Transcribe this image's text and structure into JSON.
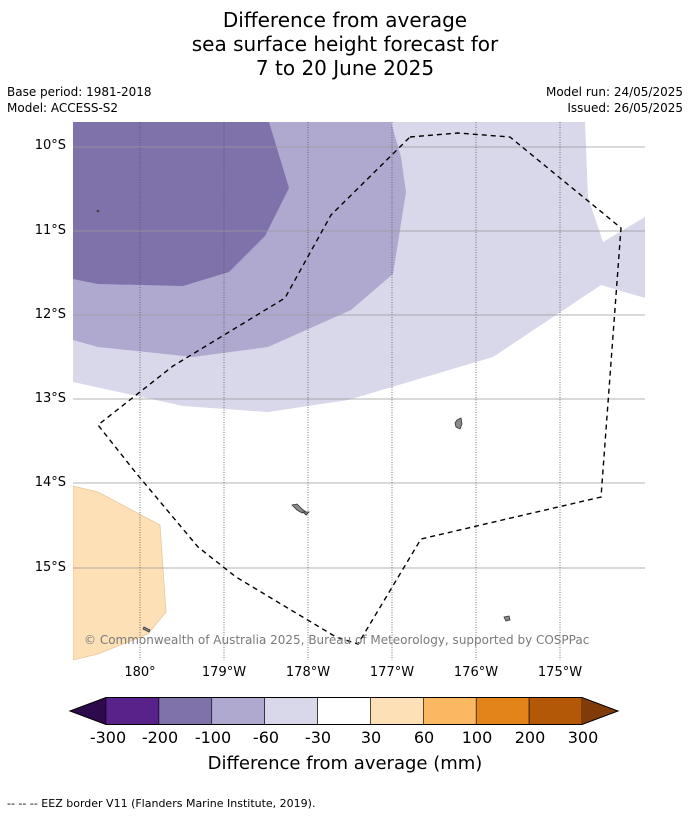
{
  "title": {
    "line1": "Difference from average",
    "line2": "sea surface height forecast for",
    "line3": "7 to 20 June 2025"
  },
  "meta": {
    "base_period": "Base period: 1981-2018",
    "model": "Model: ACCESS-S2",
    "model_run": "Model run: 24/05/2025",
    "issued": "Issued: 26/05/2025"
  },
  "map": {
    "lat_labels": [
      "10°S",
      "11°S",
      "12°S",
      "13°S",
      "14°S",
      "15°S"
    ],
    "lon_labels": [
      "180°",
      "179°W",
      "178°W",
      "177°W",
      "176°W",
      "175°W"
    ],
    "copyright": "© Commonwealth of Australia 2025, Bureau of Meteorology, supported by COSPPac",
    "colors": {
      "class_minus_200_minus_100": "#7f71aa",
      "class_minus_100_minus_60": "#afa9d0",
      "class_minus_60_minus_30": "#d8d8ea",
      "class_30_60": "#fde0b6"
    }
  },
  "colorbar": {
    "title": "Difference from average (mm)",
    "ticks": [
      "-300",
      "-200",
      "-100",
      "-60",
      "-30",
      "30",
      "60",
      "100",
      "200",
      "300"
    ],
    "colors": [
      "#2d0a4b",
      "#58228a",
      "#7f71aa",
      "#afa9d0",
      "#d8d8ea",
      "#ffffff",
      "#fde0b6",
      "#fbb862",
      "#e2841a",
      "#b35807",
      "#7f3b08"
    ]
  },
  "footer": {
    "legend_line": "--  --  -- EEZ border V11 (Flanders Marine Institute, 2019)."
  }
}
